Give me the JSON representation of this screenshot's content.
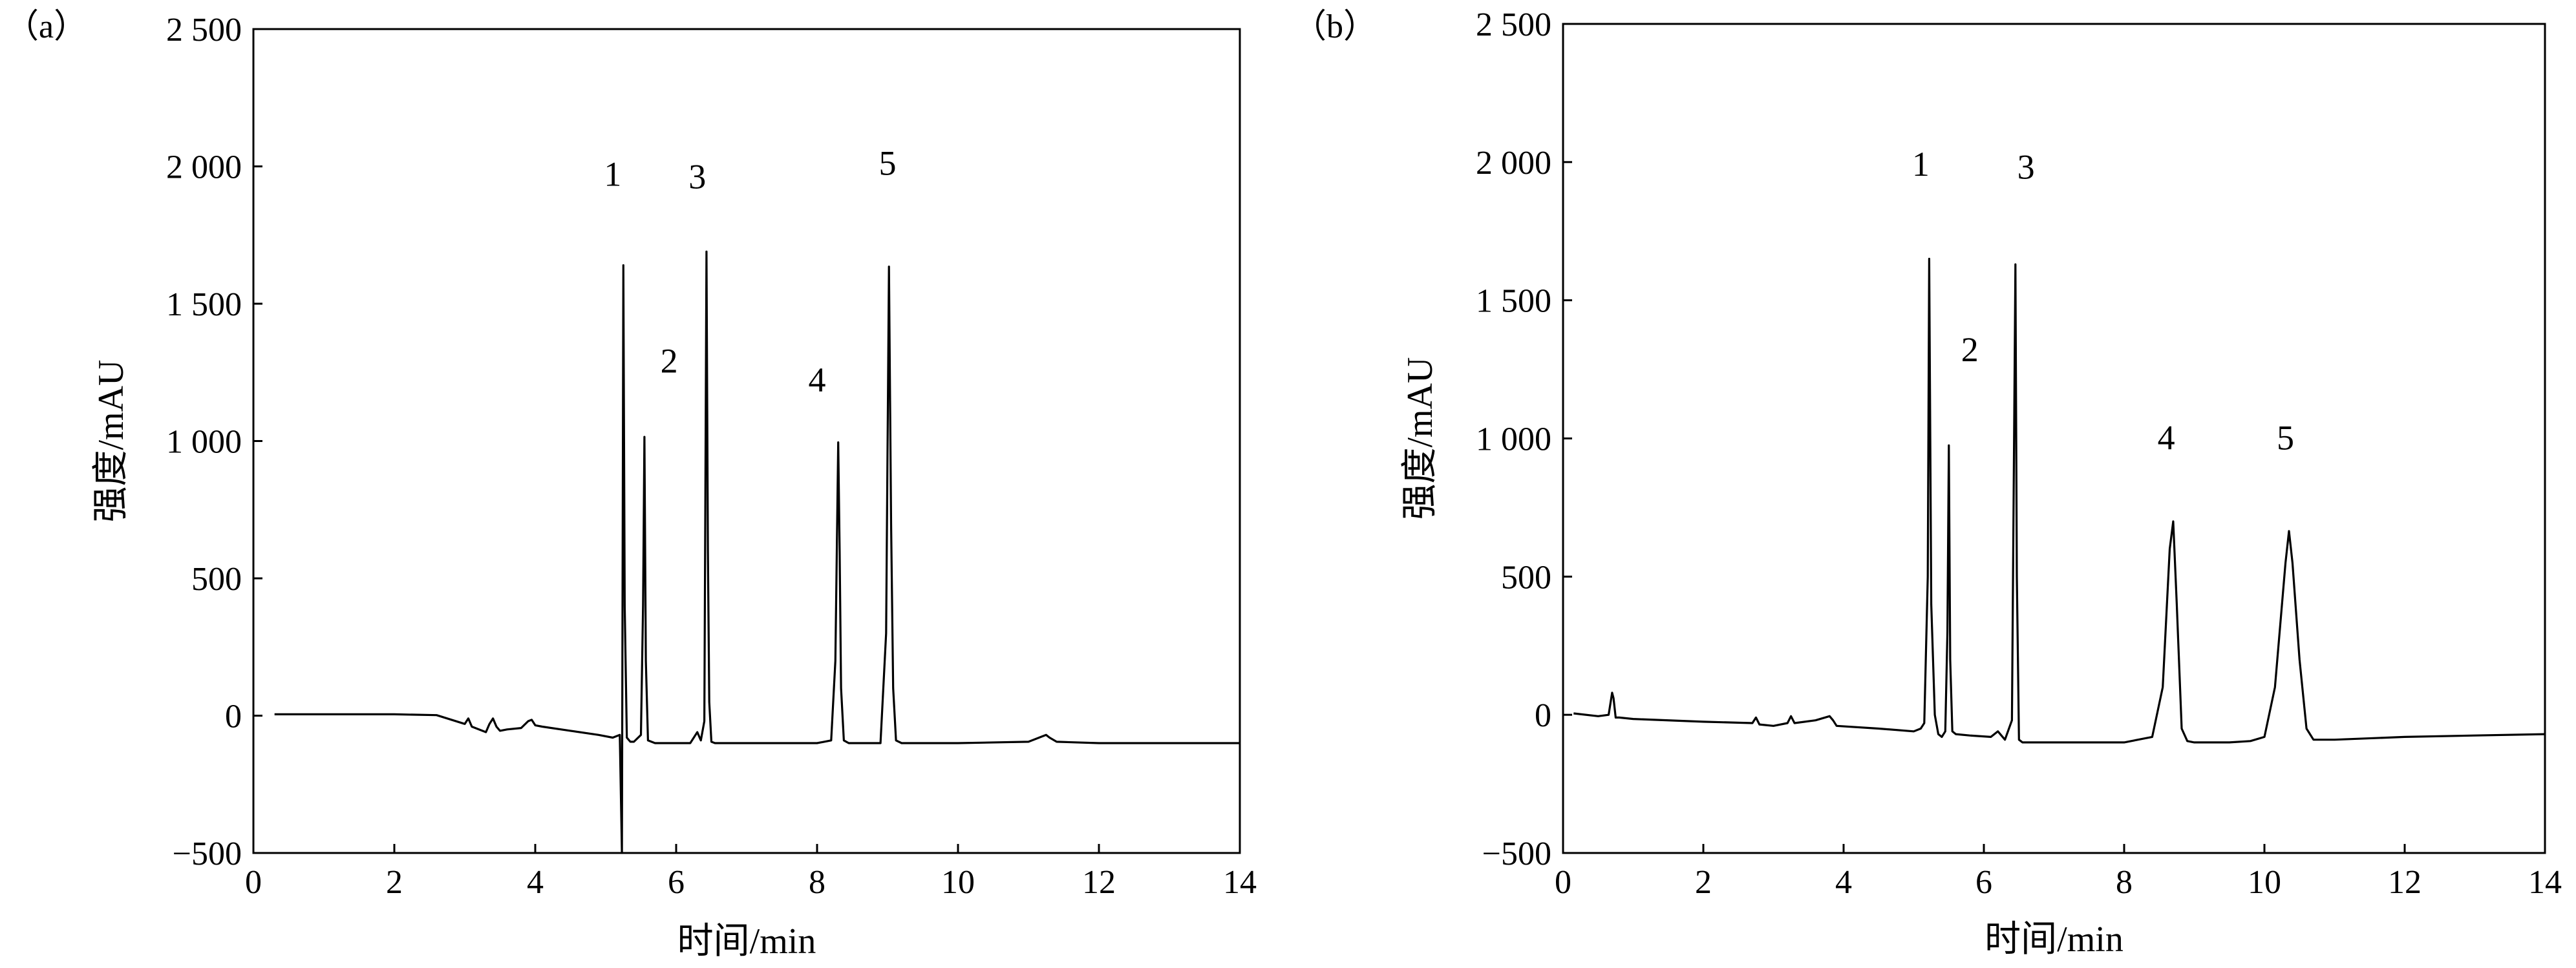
{
  "chart_data": [
    {
      "type": "line",
      "panel_label": "（a）",
      "xlabel": "时间/min",
      "ylabel": "强度/mAU",
      "xlim": [
        0,
        14
      ],
      "ylim": [
        -500,
        2500
      ],
      "xticks": [
        0,
        2,
        4,
        6,
        8,
        10,
        12,
        14
      ],
      "xtick_labels": [
        "0",
        "2",
        "4",
        "6",
        "8",
        "10",
        "12",
        "14"
      ],
      "yticks": [
        -500,
        0,
        500,
        1000,
        1500,
        2000,
        2500
      ],
      "ytick_labels": [
        "−500",
        "0",
        "500",
        "1 000",
        "1 500",
        "2 000",
        "2 500"
      ],
      "grid": false,
      "series": [
        {
          "x": [
            0.3,
            1.0,
            2.0,
            2.6,
            3.0,
            3.05,
            3.1,
            3.2,
            3.3,
            3.35,
            3.4,
            3.45,
            3.5,
            3.6,
            3.8,
            3.9,
            3.95,
            4.0,
            4.1,
            4.5,
            4.9,
            5.1,
            5.2,
            5.23,
            5.25,
            5.27,
            5.3,
            5.35,
            5.4,
            5.5,
            5.53,
            5.55,
            5.57,
            5.6,
            5.7,
            6.0,
            6.2,
            6.3,
            6.35,
            6.4,
            6.43,
            6.45,
            6.47,
            6.5,
            6.55,
            7.0,
            8.0,
            8.2,
            8.26,
            8.3,
            8.32,
            8.34,
            8.38,
            8.45,
            8.6,
            8.9,
            8.98,
            9.02,
            9.05,
            9.08,
            9.12,
            9.2,
            10.0,
            11.0,
            11.2,
            11.25,
            11.3,
            11.4,
            12.0,
            13.0,
            14.0
          ],
          "y": [
            5,
            5,
            5,
            2,
            -30,
            -10,
            -40,
            -50,
            -60,
            -30,
            -10,
            -40,
            -55,
            -50,
            -45,
            -20,
            -15,
            -35,
            -40,
            -55,
            -70,
            -80,
            -70,
            -500,
            1640,
            400,
            -80,
            -95,
            -95,
            -70,
            400,
            1015,
            200,
            -90,
            -100,
            -100,
            -100,
            -60,
            -90,
            -20,
            1690,
            600,
            50,
            -95,
            -100,
            -100,
            -100,
            -90,
            200,
            995,
            600,
            100,
            -90,
            -100,
            -100,
            -100,
            300,
            1635,
            700,
            100,
            -90,
            -100,
            -100,
            -95,
            -75,
            -70,
            -80,
            -95,
            -100,
            -100,
            -100
          ]
        }
      ],
      "peak_annotations": [
        {
          "label": "1",
          "x": 5.1,
          "y": 1930
        },
        {
          "label": "2",
          "x": 5.9,
          "y": 1250
        },
        {
          "label": "3",
          "x": 6.3,
          "y": 1920
        },
        {
          "label": "4",
          "x": 8.0,
          "y": 1180
        },
        {
          "label": "5",
          "x": 9.0,
          "y": 1970
        }
      ]
    },
    {
      "type": "line",
      "panel_label": "（b）",
      "xlabel": "时间/min",
      "ylabel": "强度/mAU",
      "xlim": [
        0,
        14
      ],
      "ylim": [
        -500,
        2500
      ],
      "xticks": [
        0,
        2,
        4,
        6,
        8,
        10,
        12,
        14
      ],
      "xtick_labels": [
        "0",
        "2",
        "4",
        "6",
        "8",
        "10",
        "12",
        "14"
      ],
      "yticks": [
        -500,
        0,
        500,
        1000,
        1500,
        2000,
        2500
      ],
      "ytick_labels": [
        "−500",
        "0",
        "500",
        "1 000",
        "1 500",
        "2 000",
        "2 500"
      ],
      "grid": false,
      "series": [
        {
          "x": [
            0.15,
            0.5,
            0.65,
            0.7,
            0.72,
            0.75,
            0.8,
            1.0,
            2.0,
            2.7,
            2.75,
            2.8,
            3.0,
            3.2,
            3.25,
            3.3,
            3.6,
            3.8,
            3.85,
            3.9,
            4.5,
            5.0,
            5.1,
            5.15,
            5.2,
            5.22,
            5.25,
            5.3,
            5.35,
            5.4,
            5.45,
            5.48,
            5.5,
            5.52,
            5.55,
            5.6,
            5.8,
            6.1,
            6.2,
            6.3,
            6.4,
            6.45,
            6.47,
            6.5,
            6.55,
            6.6,
            7.0,
            8.0,
            8.4,
            8.55,
            8.65,
            8.7,
            8.75,
            8.82,
            8.9,
            9.0,
            9.5,
            9.8,
            10.0,
            10.15,
            10.3,
            10.35,
            10.4,
            10.5,
            10.6,
            10.7,
            11.0,
            12.0,
            13.0,
            14.0
          ],
          "y": [
            5,
            -5,
            0,
            80,
            60,
            -10,
            -10,
            -15,
            -25,
            -30,
            -10,
            -35,
            -40,
            -30,
            -5,
            -30,
            -20,
            -5,
            -20,
            -40,
            -50,
            -60,
            -50,
            -30,
            500,
            1650,
            400,
            0,
            -70,
            -80,
            -60,
            300,
            975,
            200,
            -60,
            -70,
            -75,
            -80,
            -60,
            -90,
            -20,
            1630,
            500,
            -90,
            -100,
            -100,
            -100,
            -100,
            -80,
            100,
            600,
            700,
            400,
            -50,
            -95,
            -100,
            -100,
            -95,
            -80,
            100,
            550,
            665,
            550,
            200,
            -50,
            -90,
            -90,
            -80,
            -75,
            -70
          ]
        }
      ],
      "peak_annotations": [
        {
          "label": "1",
          "x": 5.1,
          "y": 1950
        },
        {
          "label": "2",
          "x": 5.8,
          "y": 1280
        },
        {
          "label": "3",
          "x": 6.6,
          "y": 1940
        },
        {
          "label": "4",
          "x": 8.6,
          "y": 960
        },
        {
          "label": "5",
          "x": 10.3,
          "y": 960
        }
      ]
    }
  ]
}
